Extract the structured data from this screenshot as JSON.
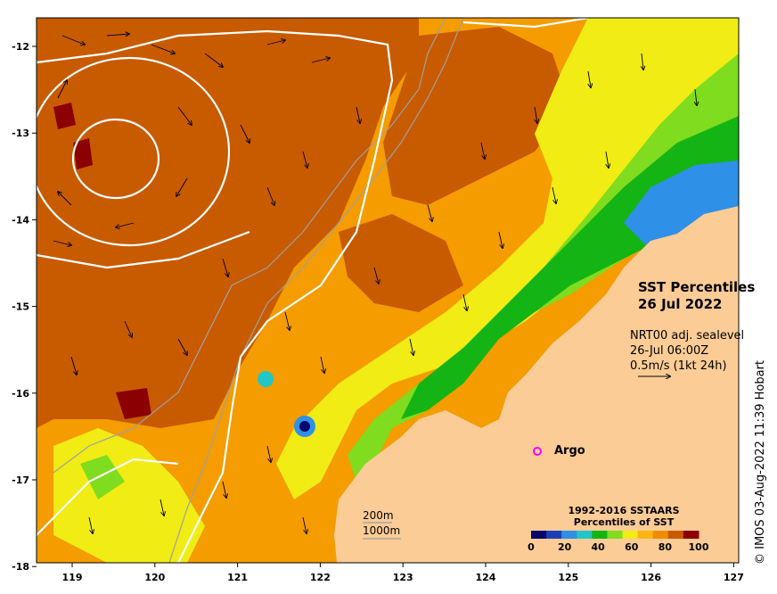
{
  "map": {
    "title_line1": "SST Percentiles",
    "title_line2": "26 Jul 2022",
    "info_line1": "NRT00 adj. sealevel",
    "info_line2": "26-Jul 06:00Z",
    "info_line3": "0.5m/s (1kt 24h)",
    "argo_label": "Argo",
    "depth_label_1": "200m",
    "depth_label_2": "1000m",
    "credit": "© IMOS 03-Aug-2022 11:39 Hobart",
    "longitude_ticks": [
      "119",
      "120",
      "121",
      "122",
      "123",
      "124",
      "125",
      "126",
      "127"
    ],
    "latitude_ticks": [
      "-12",
      "-13",
      "-14",
      "-15",
      "-16",
      "-17",
      "-18"
    ],
    "colorbar": {
      "title_line1": "1992-2016 SSTAARS",
      "title_line2": "Percentiles of SST",
      "ticks": [
        "0",
        "20",
        "40",
        "60",
        "80",
        "100"
      ],
      "colors": [
        "#08086b",
        "#1c3fb8",
        "#2e90e6",
        "#22c6c6",
        "#14b414",
        "#7fdc1e",
        "#f0ec14",
        "#fdb414",
        "#f08c00",
        "#c85a00",
        "#8b0000"
      ]
    },
    "colors": {
      "land": "#fccc96",
      "contour": "#ffffff",
      "bathymetry": "#a0a0a0",
      "argo_marker": "#ff00ff"
    }
  }
}
